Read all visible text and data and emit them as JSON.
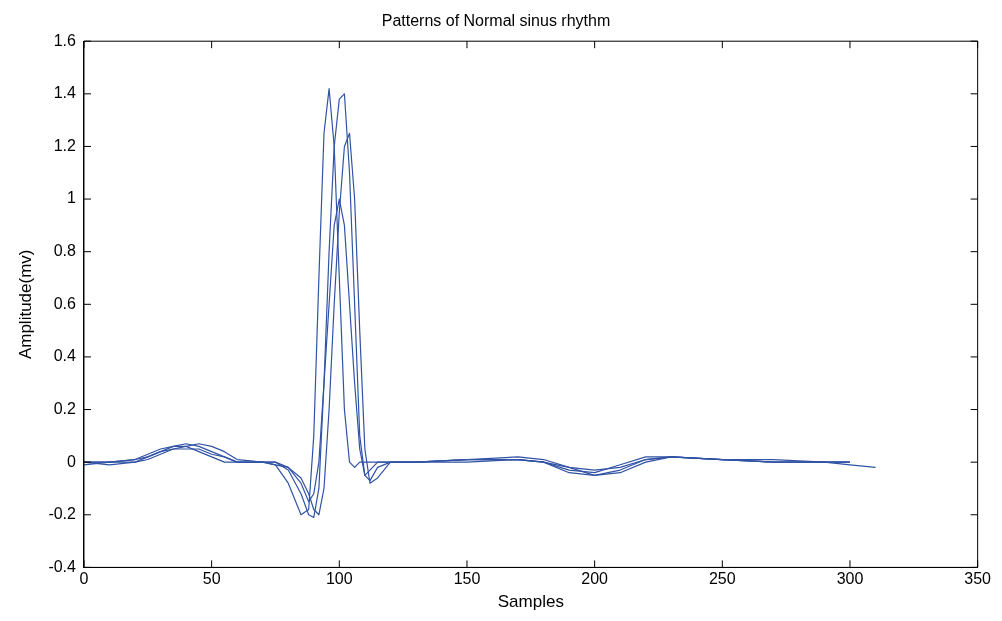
{
  "chart_data": {
    "type": "line",
    "title": "Patterns of Normal sinus rhythm",
    "xlabel": "Samples",
    "ylabel": "Amplitude(mv)",
    "x": [
      0,
      10,
      20,
      25,
      30,
      35,
      40,
      45,
      50,
      55,
      60,
      70,
      75,
      80,
      85,
      88,
      90,
      92,
      94,
      96,
      98,
      100,
      102,
      104,
      106,
      108,
      110,
      112,
      115,
      120,
      130,
      150,
      170,
      180,
      190,
      200,
      210,
      220,
      230,
      250,
      270,
      290,
      300,
      310
    ],
    "series": [
      {
        "color": "#3153a5",
        "values": [
          0,
          0,
          0.01,
          0.03,
          0.05,
          0.06,
          0.06,
          0.04,
          0.02,
          0,
          0,
          0,
          -0.01,
          -0.08,
          -0.2,
          -0.18,
          0.1,
          0.7,
          1.25,
          1.42,
          1.2,
          0.7,
          0.2,
          0,
          -0.02,
          0,
          0,
          0,
          0,
          0,
          0,
          0.01,
          0.01,
          0,
          -0.03,
          -0.04,
          -0.01,
          0.02,
          0.02,
          0.01,
          0,
          0,
          -0.01,
          -0.02
        ]
      },
      {
        "color": "#3153a5",
        "values": [
          -0.01,
          0,
          0,
          0.02,
          0.04,
          0.06,
          0.07,
          0.06,
          0.04,
          0.02,
          0,
          0,
          0,
          -0.03,
          -0.12,
          -0.2,
          -0.21,
          -0.1,
          0.3,
          0.8,
          1.2,
          1.38,
          1.4,
          1.1,
          0.6,
          0.1,
          -0.05,
          -0.07,
          -0.02,
          0,
          0,
          0.01,
          0.02,
          0.01,
          -0.02,
          -0.05,
          -0.04,
          0,
          0.02,
          0.01,
          0.01,
          0,
          0,
          null
        ]
      },
      {
        "color": "#3153a5",
        "values": [
          0,
          -0.01,
          0,
          0.01,
          0.03,
          0.05,
          0.06,
          0.07,
          0.06,
          0.04,
          0.01,
          0,
          -0.01,
          -0.02,
          -0.06,
          -0.12,
          -0.18,
          -0.2,
          -0.1,
          0.2,
          0.6,
          0.95,
          1.2,
          1.25,
          1.0,
          0.5,
          0.05,
          -0.08,
          -0.06,
          0,
          0,
          0,
          0.01,
          0,
          -0.04,
          -0.05,
          -0.03,
          0.01,
          0.02,
          0.01,
          0,
          0,
          0,
          null
        ]
      },
      {
        "color": "#3153a5",
        "values": [
          0,
          0,
          0.01,
          0.02,
          0.04,
          0.05,
          0.05,
          0.05,
          0.03,
          0.02,
          0,
          0,
          0,
          -0.02,
          -0.08,
          -0.15,
          -0.12,
          0,
          0.3,
          0.6,
          0.9,
          1.0,
          0.9,
          0.6,
          0.3,
          0.05,
          -0.05,
          -0.03,
          0,
          0,
          0,
          0.01,
          0.01,
          0,
          -0.02,
          -0.03,
          -0.02,
          0.01,
          0.02,
          0.01,
          0,
          0,
          0,
          null
        ]
      }
    ],
    "xlim": [
      0,
      350
    ],
    "xticks": [
      0,
      50,
      100,
      150,
      200,
      250,
      300,
      350
    ],
    "ylim": [
      -0.4,
      1.6
    ],
    "yticks": [
      -0.4,
      -0.2,
      0,
      0.2,
      0.4,
      0.6,
      0.8,
      1,
      1.2,
      1.4,
      1.6
    ],
    "grid": false,
    "legend": false,
    "marker": "none",
    "line_style": "solid"
  }
}
